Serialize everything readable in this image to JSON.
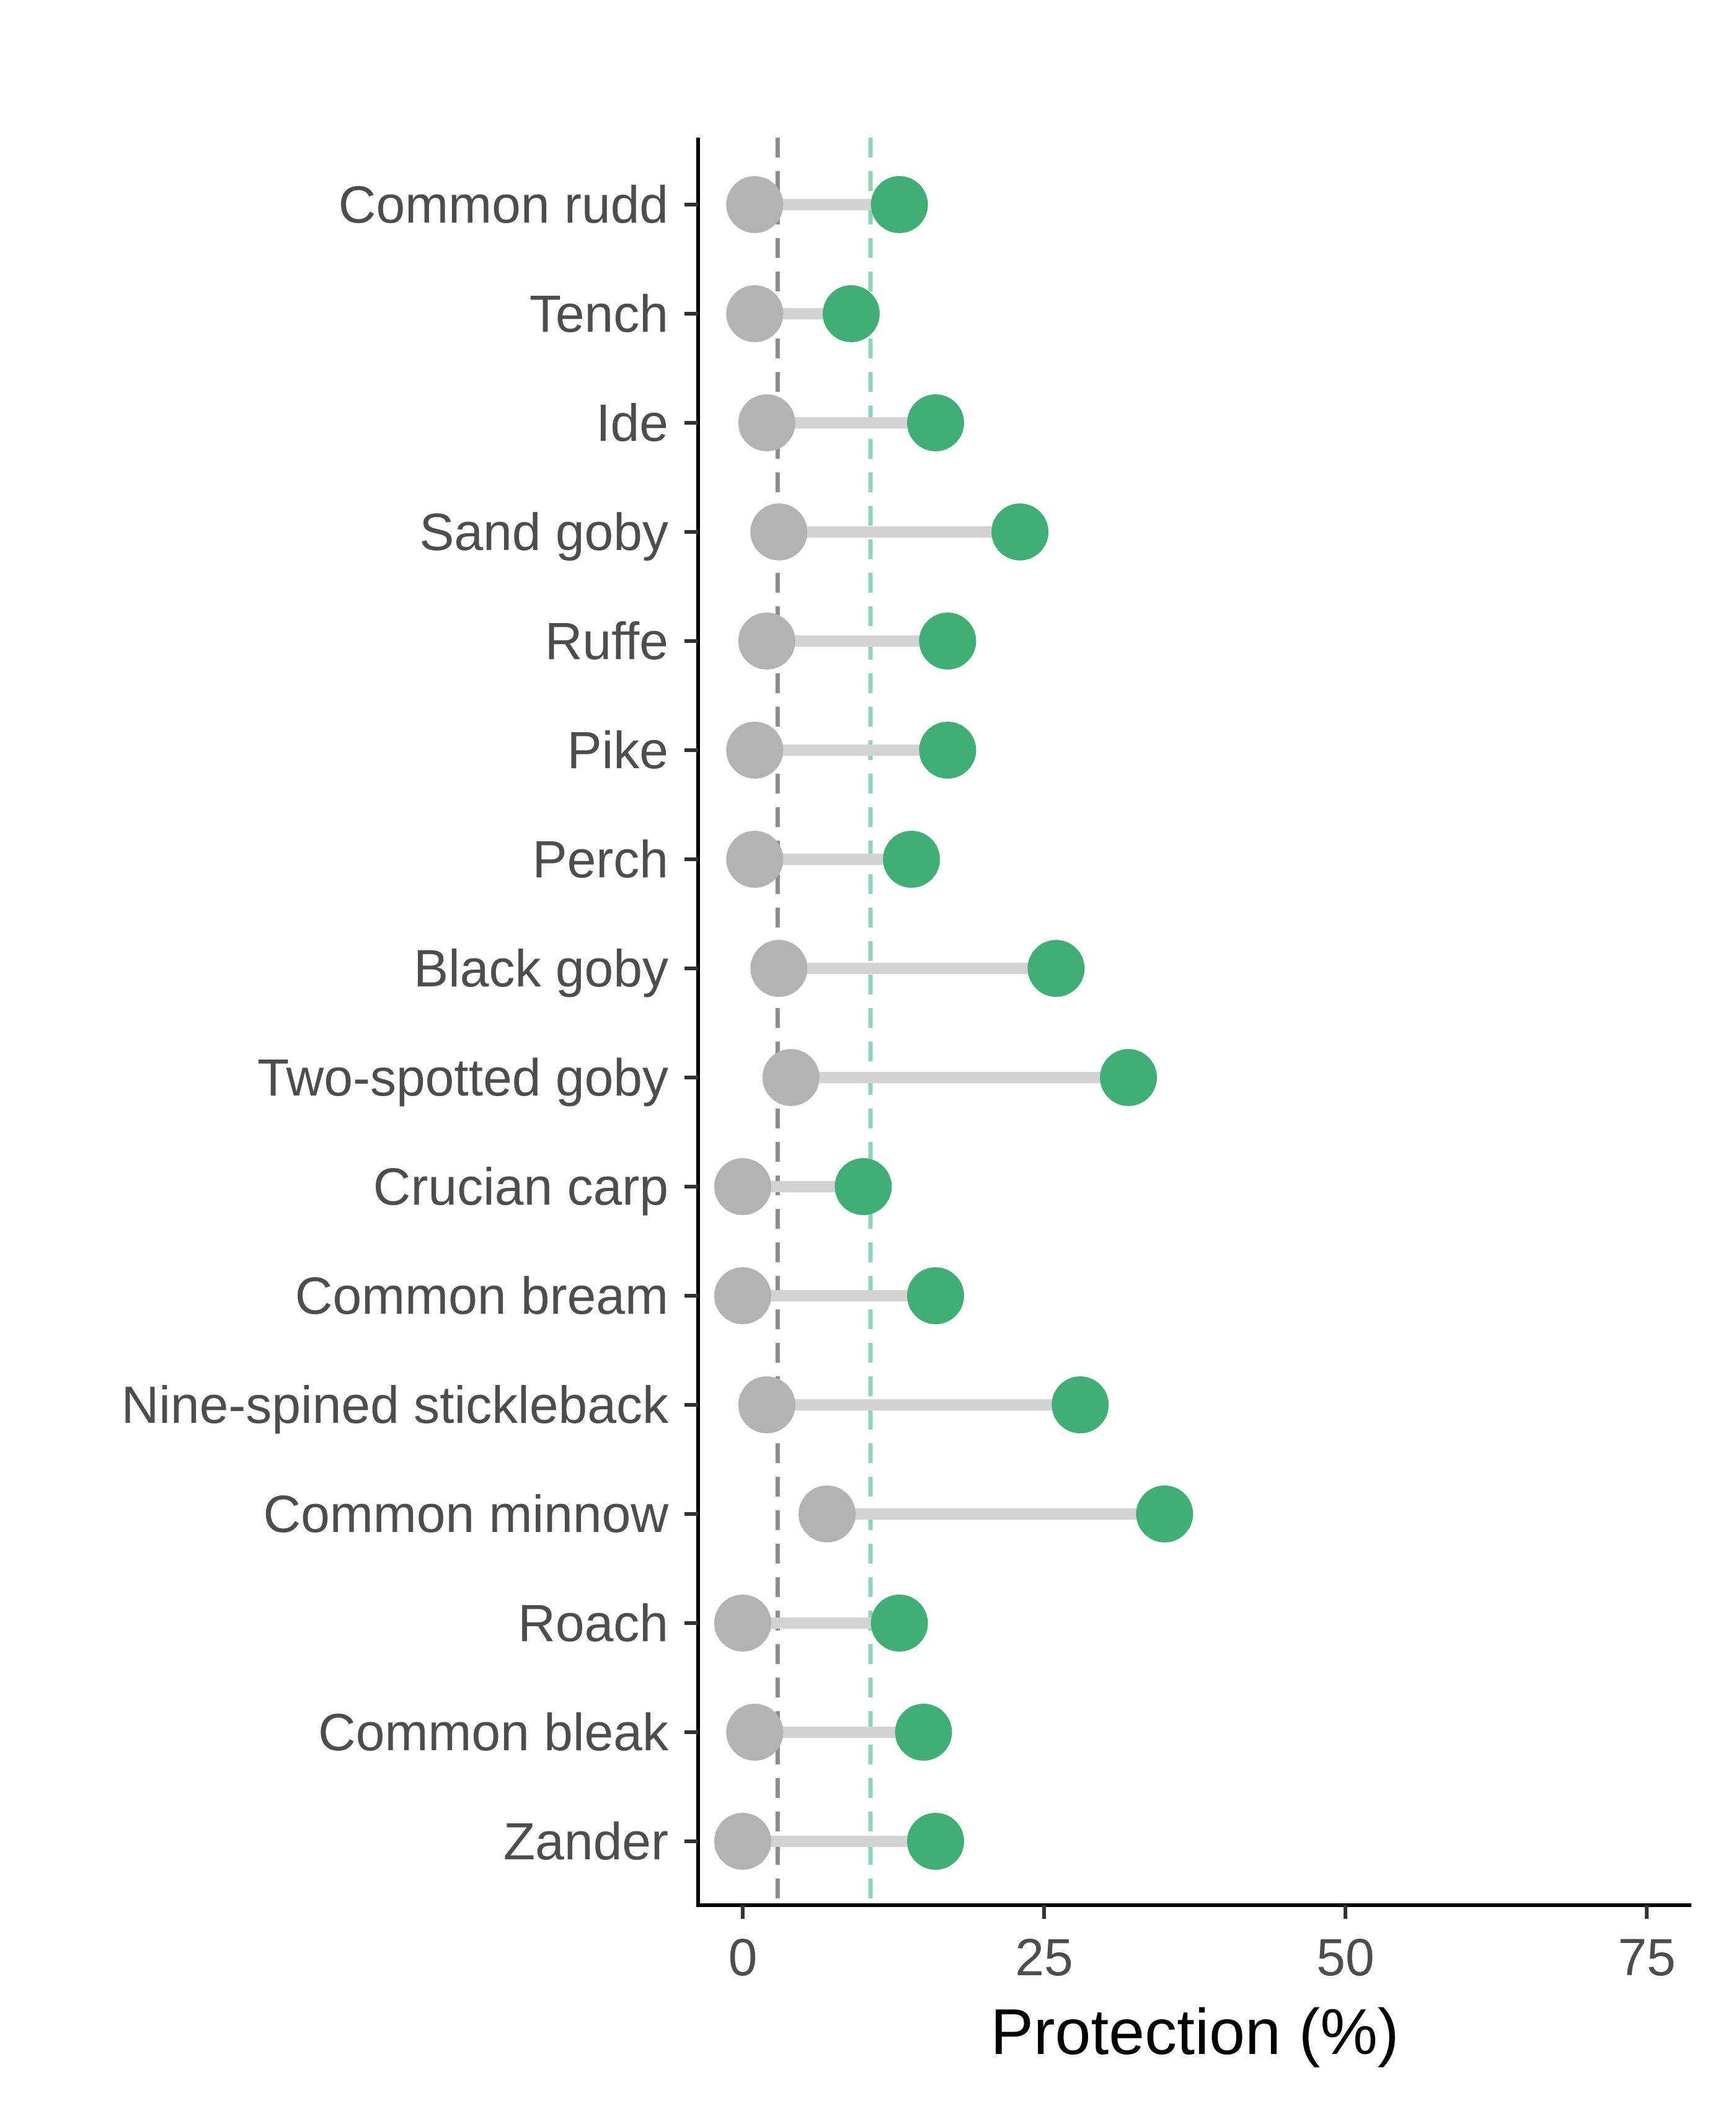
{
  "chart_data": {
    "type": "dumbbell",
    "xlabel": "Protection (%)",
    "ylabel": "",
    "xlim": [
      -3.7,
      78.7
    ],
    "xticks": [
      0,
      25,
      50,
      75
    ],
    "grid": false,
    "legend": "none",
    "reference_lines": [
      {
        "x": 2.9,
        "color": "#8c8c8c",
        "style": "dashed"
      },
      {
        "x": 10.6,
        "color": "#8fd3b8",
        "style": "dashed"
      }
    ],
    "categories": [
      "Common rudd",
      "Tench",
      "Ide",
      "Sand goby",
      "Ruffe",
      "Pike",
      "Perch",
      "Black goby",
      "Two-spotted goby",
      "Crucian carp",
      "Common bream",
      "Nine-spined stickleback",
      "Common minnow",
      "Roach",
      "Common bleak",
      "Zander"
    ],
    "series": [
      {
        "color": "#b3b3b3",
        "values": [
          1.0,
          1.0,
          2.0,
          3.0,
          2.0,
          1.0,
          1.0,
          3.0,
          4.0,
          0.0,
          0.0,
          2.0,
          7.0,
          0.0,
          1.0,
          0.0
        ]
      },
      {
        "color": "#41ae76",
        "values": [
          13.0,
          9.0,
          16.0,
          23.0,
          17.0,
          17.0,
          14.0,
          26.0,
          32.0,
          10.0,
          16.0,
          28.0,
          35.0,
          13.0,
          15.0,
          16.0
        ]
      }
    ],
    "segment_color": "#d3d3d3"
  }
}
